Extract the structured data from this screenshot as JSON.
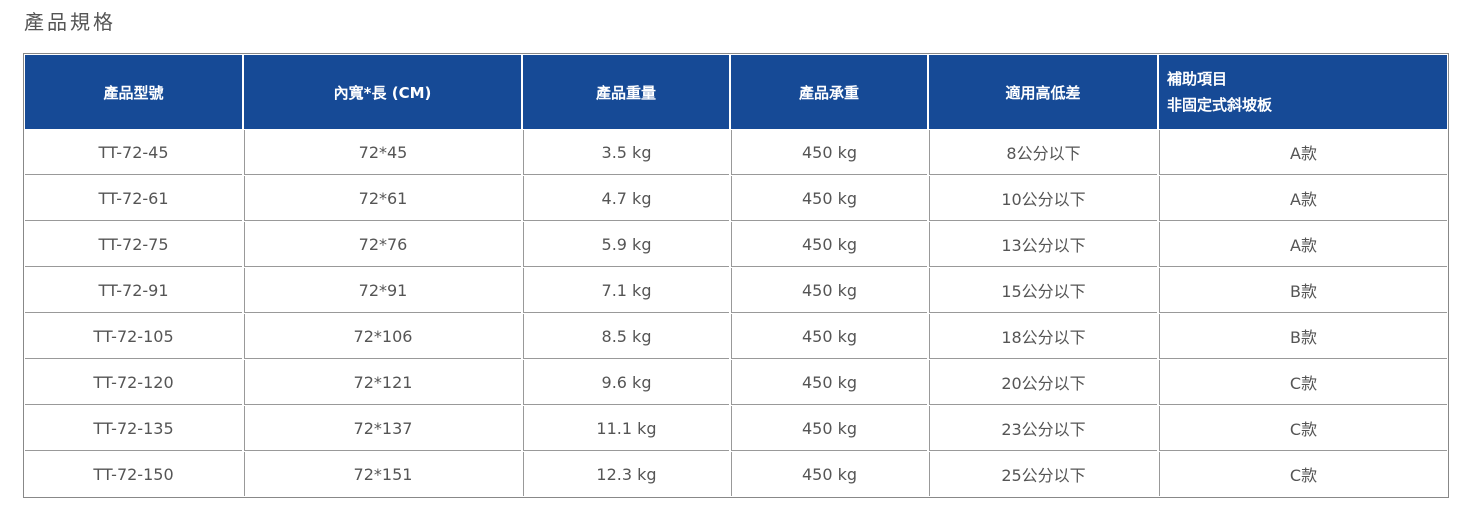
{
  "title": "產品規格",
  "headers": [
    "產品型號",
    "內寬*長 (CM)",
    "產品重量",
    "產品承重",
    "適用高低差"
  ],
  "last_header": {
    "line1": "補助項目",
    "line2": "非固定式斜坡板"
  },
  "colors": {
    "header_bg": "#164a96"
  },
  "rows": [
    [
      "TT-72-45",
      "72*45",
      "3.5 kg",
      "450 kg",
      "8公分以下",
      "A款"
    ],
    [
      "TT-72-61",
      "72*61",
      "4.7 kg",
      "450 kg",
      "10公分以下",
      "A款"
    ],
    [
      "TT-72-75",
      "72*76",
      "5.9 kg",
      "450 kg",
      "13公分以下",
      "A款"
    ],
    [
      "TT-72-91",
      "72*91",
      "7.1 kg",
      "450 kg",
      "15公分以下",
      "B款"
    ],
    [
      "TT-72-105",
      "72*106",
      "8.5 kg",
      "450 kg",
      "18公分以下",
      "B款"
    ],
    [
      "TT-72-120",
      "72*121",
      "9.6 kg",
      "450 kg",
      "20公分以下",
      "C款"
    ],
    [
      "TT-72-135",
      "72*137",
      "11.1 kg",
      "450 kg",
      "23公分以下",
      "C款"
    ],
    [
      "TT-72-150",
      "72*151",
      "12.3 kg",
      "450 kg",
      "25公分以下",
      "C款"
    ]
  ]
}
